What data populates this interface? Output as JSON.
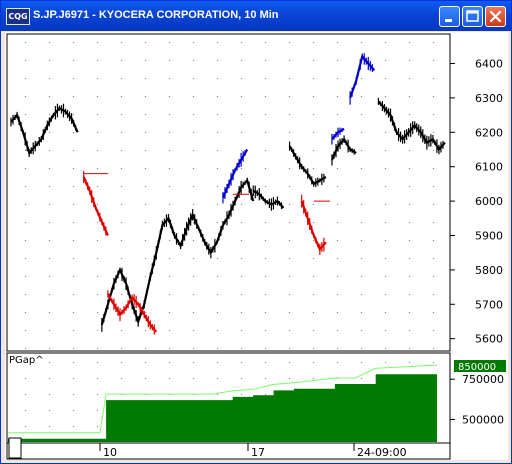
{
  "window": {
    "icon_text": "CQG",
    "title": "S.JP.J6971 - KYOCERA CORPORATION, 10 Min"
  },
  "price_panel": {
    "y_ticks": [
      "6400",
      "6300",
      "6200",
      "6100",
      "6000",
      "5900",
      "5800",
      "5700",
      "5600"
    ]
  },
  "indicator_panel": {
    "label": "PGap^",
    "value_flag": "850000",
    "y_ticks": [
      "750000",
      "500000"
    ]
  },
  "time_axis": {
    "ticks": [
      "10",
      "17",
      "24-09:00"
    ]
  },
  "colors": {
    "title_bar": "#0b45d6",
    "up_trend": "#0000cc",
    "neutral": "#000000",
    "down_trend": "#dd0000",
    "pgap_fill": "#007a00",
    "pgap_line": "#7cfc6a"
  },
  "chart_data": [
    {
      "type": "line",
      "title": "",
      "ylim": [
        5570,
        6480
      ],
      "x_labels": [
        "10",
        "17",
        "24-09:00"
      ],
      "series": [
        {
          "color": "#000000",
          "segments": [
            {
              "x": [
                0,
                3,
                6,
                9,
                12,
                15,
                18,
                21,
                24,
                27,
                30,
                33
              ],
              "y": [
                6230,
                6250,
                6200,
                6140,
                6160,
                6180,
                6220,
                6250,
                6270,
                6260,
                6240,
                6200
              ]
            },
            {
              "x": [
                45,
                48,
                51,
                54,
                57,
                60,
                63,
                66,
                69,
                72,
                75,
                78,
                81,
                84,
                87,
                90,
                93,
                96,
                99,
                102,
                105,
                108,
                111,
                114,
                117,
                120
              ],
              "y": [
                5640,
                5700,
                5760,
                5800,
                5760,
                5700,
                5650,
                5700,
                5780,
                5850,
                5930,
                5950,
                5900,
                5870,
                5920,
                5960,
                5920,
                5880,
                5850,
                5880,
                5930,
                5960,
                6000,
                6040,
                6060,
                6000
              ]
            },
            {
              "x": [
                120,
                123,
                126,
                129,
                132,
                135
              ],
              "y": [
                6030,
                6020,
                6000,
                5990,
                6000,
                5980
              ]
            },
            {
              "x": [
                138,
                141,
                144,
                147,
                150,
                153,
                156
              ],
              "y": [
                6160,
                6130,
                6100,
                6080,
                6050,
                6060,
                6070
              ]
            },
            {
              "x": [
                159,
                162,
                165,
                168,
                171
              ],
              "y": [
                6120,
                6160,
                6180,
                6150,
                6140
              ]
            },
            {
              "x": [
                182,
                185,
                188,
                191,
                194,
                197,
                200,
                203,
                206,
                209,
                212,
                215
              ],
              "y": [
                6290,
                6270,
                6250,
                6200,
                6180,
                6200,
                6220,
                6200,
                6170,
                6180,
                6150,
                6170
              ]
            }
          ]
        },
        {
          "color": "#0000cc",
          "segments": [
            {
              "x": [
                105,
                108,
                111,
                114,
                117
              ],
              "y": [
                6010,
                6050,
                6090,
                6120,
                6150
              ]
            },
            {
              "x": [
                159,
                162,
                165
              ],
              "y": [
                6180,
                6200,
                6210
              ]
            },
            {
              "x": [
                168,
                171,
                174,
                177,
                180
              ],
              "y": [
                6300,
                6350,
                6420,
                6400,
                6380
              ]
            }
          ]
        },
        {
          "color": "#dd0000",
          "segments": [
            {
              "x": [
                36,
                39,
                42,
                45,
                48
              ],
              "y": [
                6070,
                6030,
                5980,
                5940,
                5900
              ]
            },
            {
              "x": [
                48,
                51,
                54,
                57,
                60,
                63,
                66,
                69,
                72
              ],
              "y": [
                5730,
                5700,
                5670,
                5690,
                5720,
                5700,
                5670,
                5640,
                5620
              ]
            },
            {
              "x": [
                144,
                147,
                150,
                153,
                156
              ],
              "y": [
                6000,
                5950,
                5900,
                5860,
                5880
              ]
            }
          ]
        }
      ]
    },
    {
      "type": "area",
      "title": "PGap^",
      "ylim": [
        360000,
        900000
      ],
      "x": [
        0,
        45,
        48,
        100,
        110,
        120,
        130,
        140,
        160,
        170,
        180,
        210
      ],
      "series": [
        {
          "name": "PGap^",
          "values": [
            380000,
            380000,
            620000,
            620000,
            640000,
            650000,
            680000,
            690000,
            720000,
            720000,
            780000,
            800000
          ]
        }
      ]
    }
  ]
}
